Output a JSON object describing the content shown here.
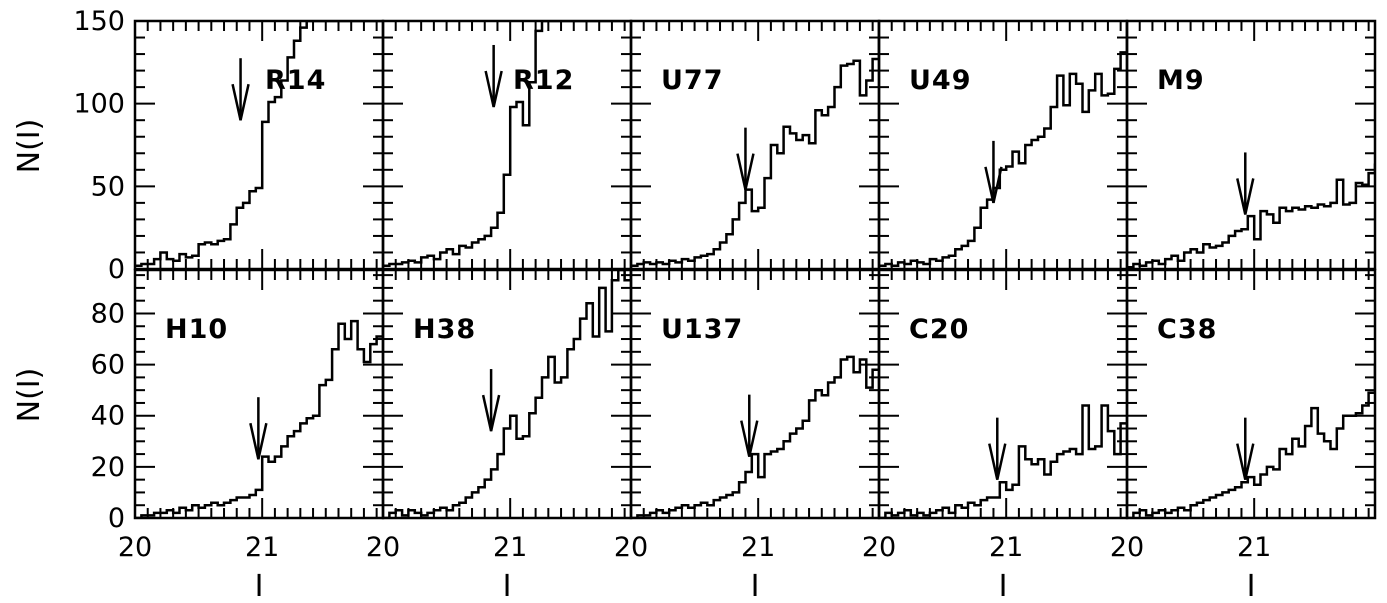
{
  "figure": {
    "ylabel": "N(I)",
    "xlabel": "I"
  },
  "chart_data": [
    {
      "type": "histogram-grid",
      "rows": [
        {
          "ylim": [
            0,
            150
          ],
          "yticks": [
            "0",
            "50",
            "100",
            "150"
          ],
          "panels": [
            {
              "label": "R14",
              "arrow_x": 20.83,
              "arrow_y": 90,
              "values": [
                2,
                3,
                3,
                6,
                10,
                6,
                5,
                9,
                7,
                8,
                15,
                16,
                15,
                17,
                18,
                27,
                37,
                40,
                47,
                49,
                89,
                101,
                104,
                114,
                128,
                138,
                146,
                150,
                150,
                150,
                150,
                150,
                150,
                150,
                150,
                150,
                150,
                150,
                150,
                150
              ]
            },
            {
              "label": "R12",
              "arrow_x": 20.87,
              "arrow_y": 98,
              "values": [
                2,
                3,
                3,
                4,
                5,
                4,
                7,
                8,
                6,
                10,
                12,
                9,
                14,
                13,
                16,
                18,
                20,
                25,
                34,
                57,
                98,
                101,
                87,
                113,
                144,
                150,
                150,
                150,
                150,
                150,
                150,
                150,
                150,
                150,
                150,
                150,
                150,
                150,
                150,
                150
              ]
            },
            {
              "label": "U77",
              "arrow_x": 20.9,
              "arrow_y": 48,
              "values": [
                2,
                3,
                4,
                3,
                4,
                3,
                5,
                4,
                6,
                5,
                7,
                8,
                9,
                12,
                16,
                21,
                30,
                40,
                48,
                35,
                37,
                55,
                75,
                70,
                86,
                82,
                78,
                81,
                76,
                96,
                93,
                98,
                110,
                123,
                124,
                126,
                105,
                114,
                127,
                150
              ]
            },
            {
              "label": "U49",
              "arrow_x": 20.9,
              "arrow_y": 40,
              "values": [
                2,
                3,
                2,
                4,
                3,
                5,
                4,
                3,
                6,
                5,
                7,
                8,
                12,
                14,
                17,
                25,
                37,
                42,
                49,
                60,
                62,
                71,
                64,
                75,
                78,
                80,
                85,
                98,
                117,
                99,
                118,
                112,
                95,
                108,
                118,
                105,
                106,
                121,
                131,
                148
              ]
            },
            {
              "label": "M9",
              "arrow_x": 20.93,
              "arrow_y": 33,
              "values": [
                1,
                3,
                2,
                4,
                5,
                3,
                6,
                8,
                5,
                10,
                12,
                10,
                15,
                13,
                14,
                16,
                20,
                23,
                24,
                32,
                18,
                35,
                33,
                28,
                37,
                35,
                37,
                36,
                38,
                37,
                39,
                38,
                40,
                54,
                39,
                40,
                52,
                51,
                58,
                63
              ]
            }
          ]
        },
        {
          "ylim": [
            0,
            97
          ],
          "yticks": [
            "0",
            "20",
            "40",
            "60",
            "80"
          ],
          "panels": [
            {
              "label": "H10",
              "arrow_x": 20.97,
              "arrow_y": 23,
              "values": [
                0,
                1,
                1,
                2,
                2,
                3,
                2,
                4,
                3,
                5,
                4,
                5,
                6,
                5,
                6,
                7,
                8,
                8,
                9,
                11,
                24,
                22,
                24,
                28,
                32,
                34,
                37,
                39,
                40,
                52,
                54,
                66,
                76,
                70,
                77,
                66,
                61,
                68,
                71,
                74
              ]
            },
            {
              "label": "H38",
              "arrow_x": 20.85,
              "arrow_y": 34,
              "values": [
                0,
                2,
                3,
                1,
                3,
                2,
                1,
                2,
                3,
                4,
                3,
                5,
                6,
                8,
                10,
                12,
                15,
                19,
                25,
                35,
                40,
                31,
                32,
                41,
                47,
                55,
                63,
                53,
                55,
                66,
                70,
                78,
                84,
                71,
                90,
                73,
                93,
                97,
                93,
                97
              ]
            },
            {
              "label": "U137",
              "arrow_x": 20.93,
              "arrow_y": 24,
              "values": [
                0,
                1,
                1,
                2,
                3,
                2,
                3,
                4,
                5,
                4,
                5,
                6,
                5,
                7,
                8,
                9,
                10,
                14,
                18,
                25,
                16,
                25,
                26,
                27,
                30,
                33,
                35,
                38,
                46,
                50,
                48,
                53,
                55,
                62,
                63,
                57,
                62,
                51,
                58,
                75
              ]
            },
            {
              "label": "C20",
              "arrow_x": 20.93,
              "arrow_y": 15,
              "values": [
                0,
                2,
                1,
                2,
                3,
                1,
                2,
                1,
                2,
                3,
                4,
                2,
                5,
                4,
                6,
                5,
                7,
                8,
                8,
                14,
                11,
                13,
                28,
                23,
                21,
                23,
                17,
                22,
                25,
                26,
                27,
                25,
                44,
                27,
                28,
                44,
                34,
                25,
                37,
                37
              ]
            },
            {
              "label": "C38",
              "arrow_x": 20.93,
              "arrow_y": 15,
              "values": [
                0,
                2,
                3,
                1,
                2,
                3,
                2,
                3,
                4,
                3,
                5,
                6,
                7,
                8,
                9,
                10,
                11,
                12,
                14,
                16,
                13,
                17,
                20,
                19,
                27,
                25,
                31,
                28,
                36,
                43,
                33,
                30,
                27,
                35,
                40,
                40,
                41,
                44,
                49,
                60
              ]
            }
          ]
        }
      ],
      "xlim": [
        20,
        21.95
      ],
      "xticks": [
        "20",
        "21"
      ],
      "bin_width": 0.05
    }
  ]
}
